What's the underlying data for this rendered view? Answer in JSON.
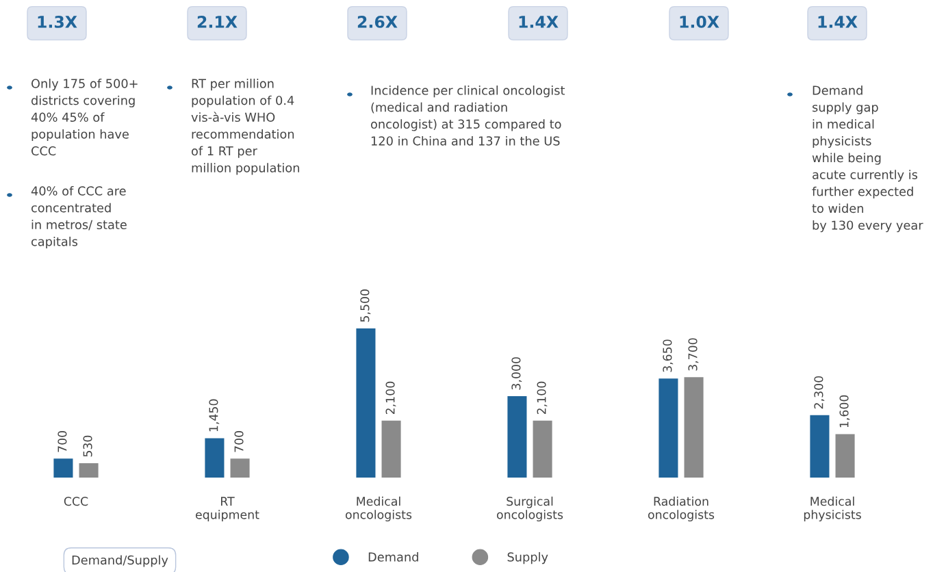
{
  "chart_data": {
    "type": "bar",
    "categories": [
      "CCC",
      "RT\nequipment",
      "Medical\noncologists",
      "Surgical\noncologists",
      "Radiation\noncologists",
      "Medical\nphysicists"
    ],
    "series": [
      {
        "name": "Demand",
        "color": "#1f6499",
        "values": [
          700,
          1450,
          5500,
          3000,
          3650,
          2300
        ],
        "value_labels": [
          "700",
          "1,450",
          "5,500",
          "3,000",
          "3,650",
          "2,300"
        ]
      },
      {
        "name": "Supply",
        "color": "#8a8a8a",
        "values": [
          530,
          700,
          2100,
          2100,
          3700,
          1600
        ],
        "value_labels": [
          "530",
          "700",
          "2,100",
          "2,100",
          "3,700",
          "1,600"
        ]
      }
    ],
    "legend": "bottom",
    "grid": false,
    "marker": "circle",
    "annotations": [
      "1.3X",
      "2.1X",
      "2.6X",
      "1.4X",
      "1.0X",
      "1.4X",
      "Only 175 of 500+\ndistricts covering\n40% 45% of\npopulation have\nCCC",
      "40% of CCC are\nconcentrated\nin metros/ state\ncapitals",
      "RT per million\npopulation of 0.4\nvis-à-vis WHO\nrecommendation\nof 1 RT per\nmillion population",
      "Incidence per clinical oncologist\n(medical and radiation\noncologist) at 315 compared to\n120 in China and 137 in the US",
      "Demand\nsupply gap\nin medical\nphysicists\nwhile being\nacute currently is\nfurther expected\nto widen\nby 130 every year",
      "Demand/Supply"
    ]
  }
}
